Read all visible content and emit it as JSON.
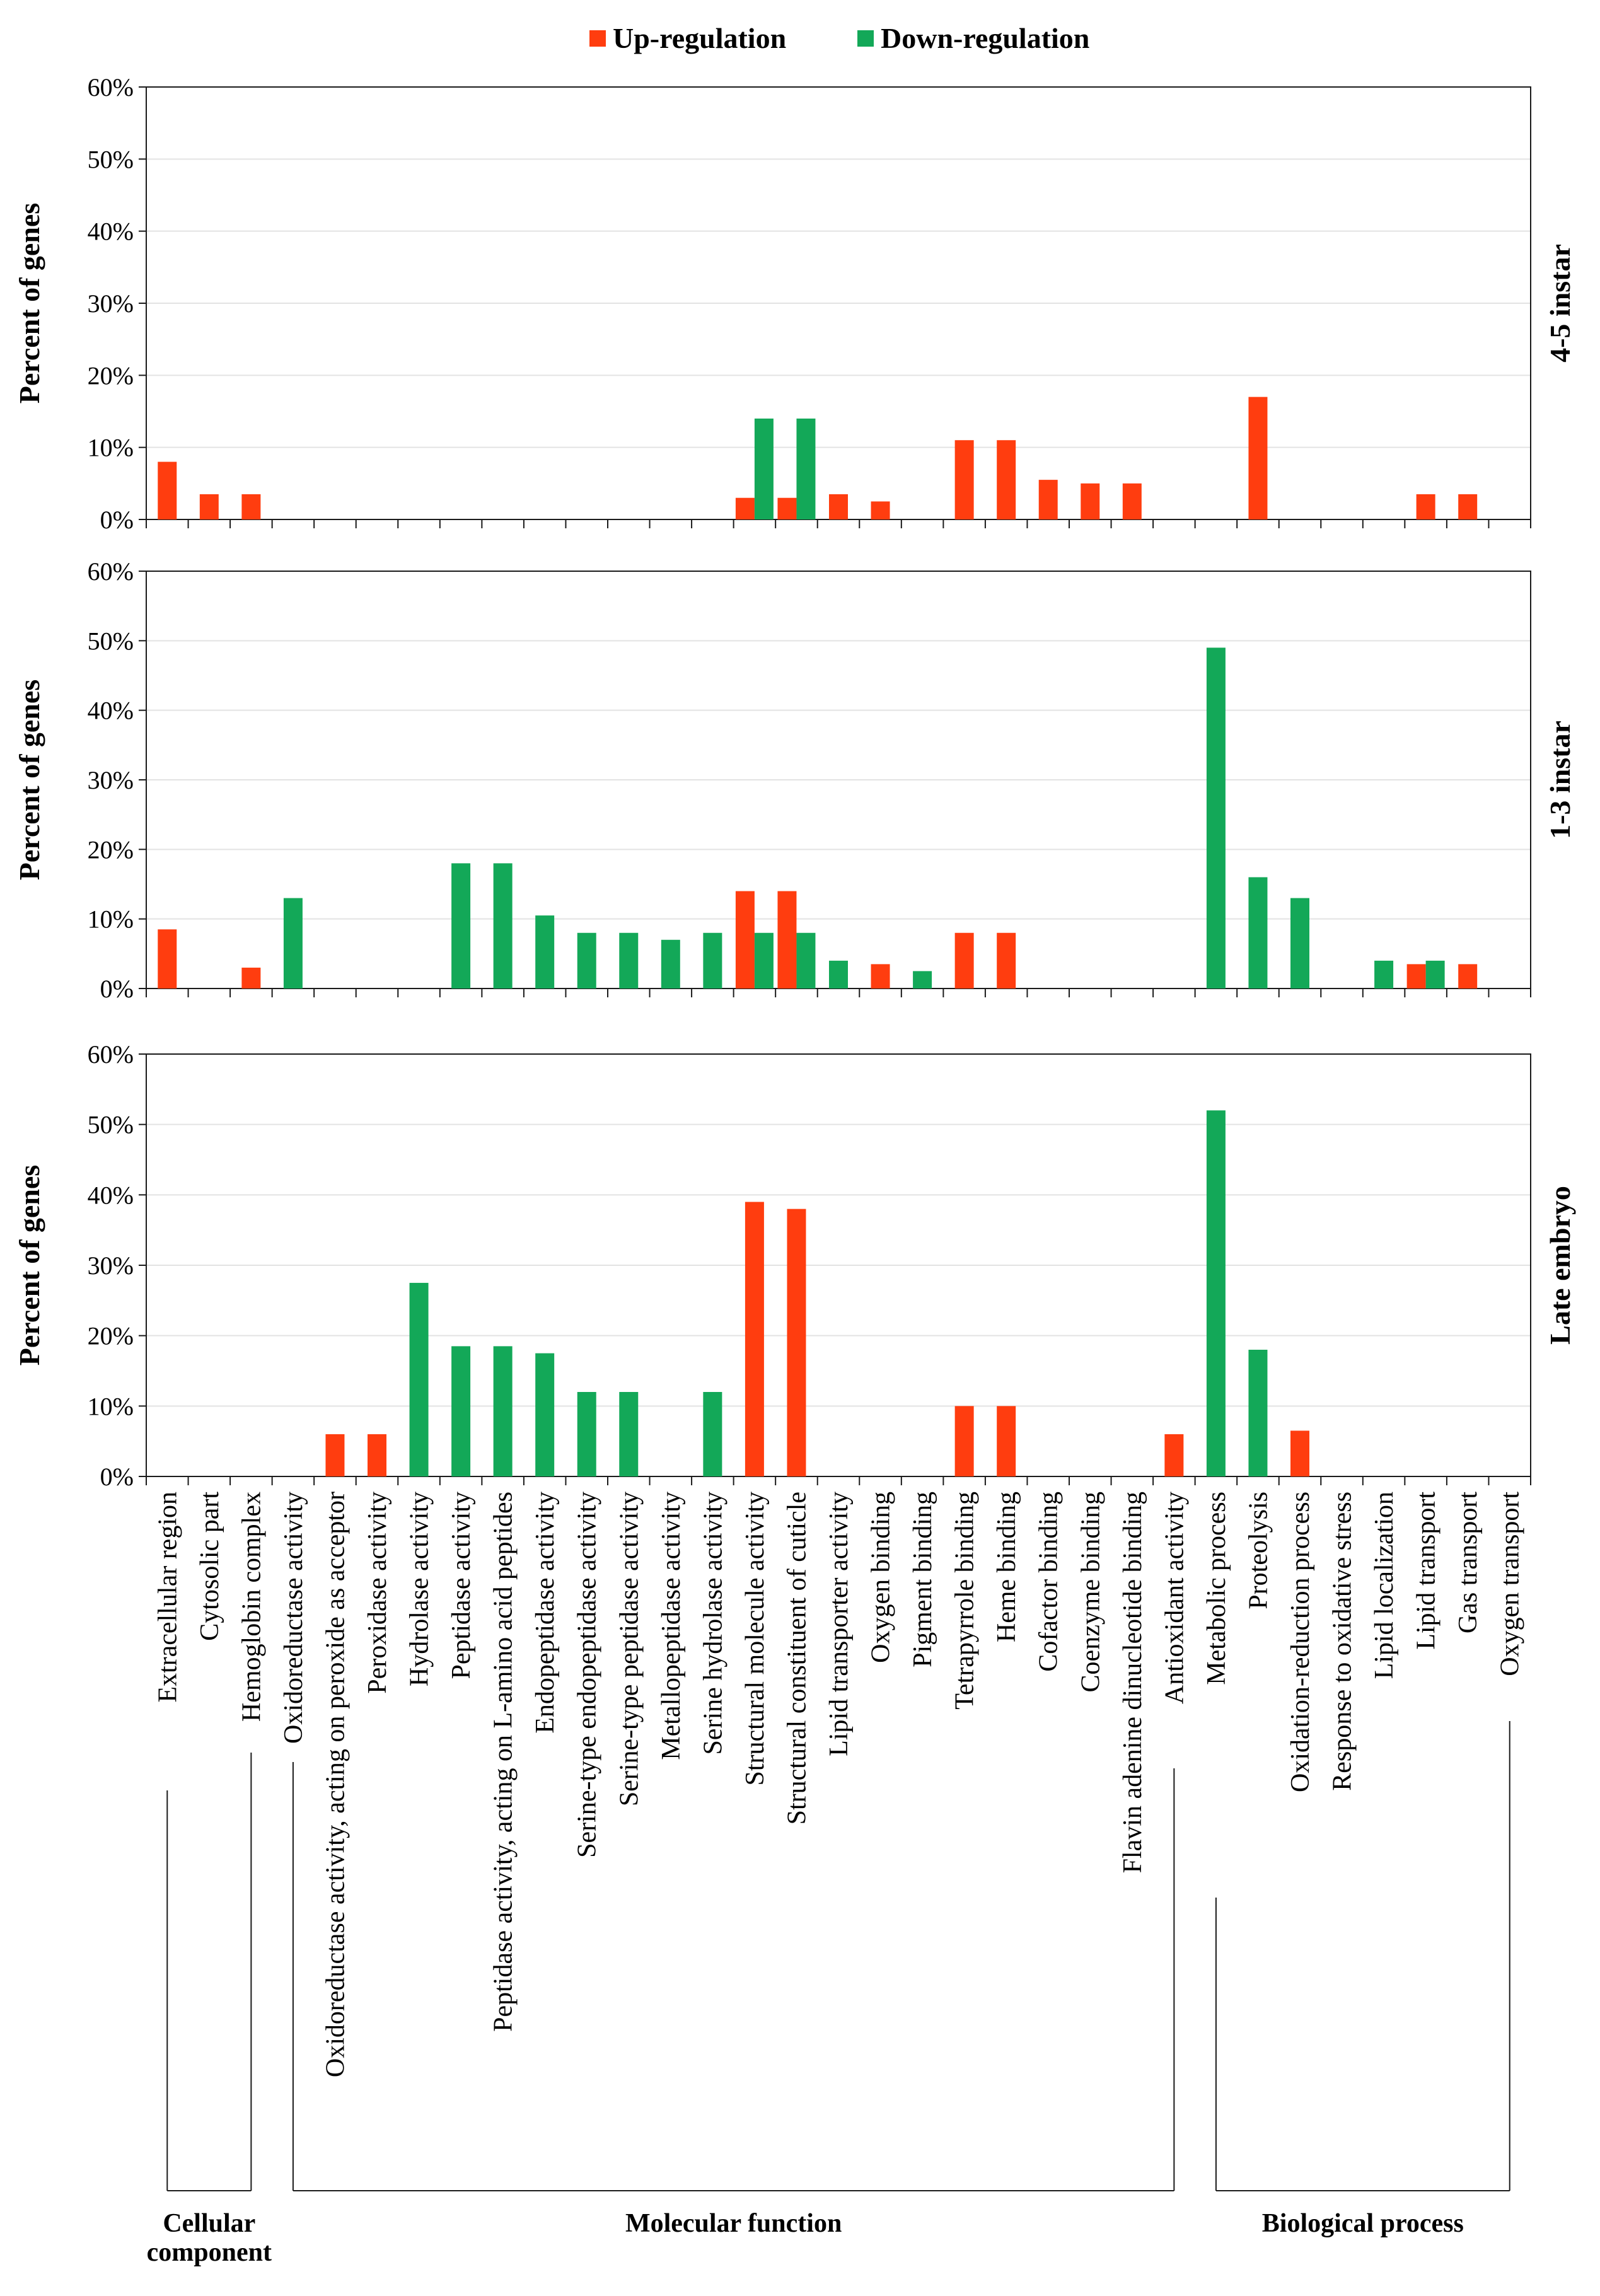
{
  "colors": {
    "up": "#FF3D0F",
    "down": "#13A858",
    "grid": "#E3E3E3",
    "frame": "#1A1A1A"
  },
  "legend": {
    "up_label": "Up-regulation",
    "down_label": "Down-regulation"
  },
  "groups": [
    {
      "label_lines": [
        "Cellular",
        "component"
      ],
      "from": 0,
      "to": 2
    },
    {
      "label_lines": [
        "Molecular function"
      ],
      "from": 3,
      "to": 24
    },
    {
      "label_lines": [
        "Biological process"
      ],
      "from": 25,
      "to": 32
    }
  ],
  "chart_data": {
    "type": "bar",
    "categories": [
      "Extracellular region",
      "Cytosolic part",
      "Hemoglobin complex",
      "Oxidoreductase activity",
      "Oxidoreductase activity, acting on peroxide as acceptor",
      "Peroxidase activity",
      "Hydrolase activity",
      "Peptidase activity",
      "Peptidase activity, acting on L-amino acid peptides",
      "Endopeptidase activity",
      "Serine-type endopeptidase activity",
      "Serine-type peptidase activity",
      "Metallopeptidase activity",
      "Serine hydrolase activity",
      "Structural molecule activity",
      "Structural constituent of cuticle",
      "Lipid transporter activity",
      "Oxygen binding",
      "Pigment binding",
      "Tetrapyrrole binding",
      "Heme binding",
      "Cofactor binding",
      "Coenzyme binding",
      "Flavin adenine dinucleotide binding",
      "Antioxidant activity",
      "Metabolic process",
      "Proteolysis",
      "Oxidation-reduction process",
      "Response to oxidative stress",
      "Lipid localization",
      "Lipid transport",
      "Gas transport",
      "Oxygen transport"
    ],
    "yticks": [
      "0%",
      "10%",
      "20%",
      "30%",
      "40%",
      "50%",
      "60%"
    ],
    "ylim": [
      0,
      60
    ],
    "ylabel": "Percent of genes",
    "panels": [
      {
        "name": "4-5 instar",
        "series": [
          {
            "name": "Up-regulation",
            "values": [
              8,
              3.5,
              3.5,
              0,
              0,
              0,
              0,
              0,
              0,
              0,
              0,
              0,
              0,
              0,
              3,
              3,
              3.5,
              2.5,
              0,
              11,
              11,
              5.5,
              5,
              5,
              0,
              0,
              17,
              0,
              0,
              0,
              3.5,
              3.5,
              0
            ]
          },
          {
            "name": "Down-regulation",
            "values": [
              0,
              0,
              0,
              0,
              0,
              0,
              0,
              0,
              0,
              0,
              0,
              0,
              0,
              0,
              14,
              14,
              0,
              0,
              0,
              0,
              0,
              0,
              0,
              0,
              0,
              0,
              0,
              0,
              0,
              0,
              0,
              0,
              0
            ]
          }
        ]
      },
      {
        "name": "1-3 instar",
        "series": [
          {
            "name": "Up-regulation",
            "values": [
              8.5,
              0,
              3,
              0,
              0,
              0,
              0,
              0,
              0,
              0,
              0,
              0,
              0,
              0,
              14,
              14,
              0,
              3.5,
              0,
              8,
              8,
              0,
              0,
              0,
              0,
              0,
              0,
              0,
              0,
              0,
              3.5,
              3.5,
              0
            ]
          },
          {
            "name": "Down-regulation",
            "values": [
              0,
              0,
              0,
              13,
              0,
              0,
              0,
              18,
              18,
              10.5,
              8,
              8,
              7,
              8,
              8,
              8,
              4,
              0,
              2.5,
              0,
              0,
              0,
              0,
              0,
              0,
              49,
              16,
              13,
              0,
              4,
              4,
              0,
              0
            ]
          }
        ]
      },
      {
        "name": "Late embryo",
        "series": [
          {
            "name": "Up-regulation",
            "values": [
              0,
              0,
              0,
              0,
              6,
              6,
              0,
              0,
              0,
              0,
              0,
              0,
              0,
              0,
              39,
              38,
              0,
              0,
              0,
              10,
              10,
              0,
              0,
              0,
              6,
              0,
              0,
              6.5,
              0,
              0,
              0,
              0,
              0
            ]
          },
          {
            "name": "Down-regulation",
            "values": [
              0,
              0,
              0,
              0,
              0,
              0,
              27.5,
              18.5,
              18.5,
              17.5,
              12,
              12,
              0,
              12,
              0,
              0,
              0,
              0,
              0,
              0,
              0,
              0,
              0,
              0,
              0,
              52,
              18,
              0,
              0,
              0,
              0,
              0,
              0
            ]
          }
        ]
      }
    ]
  }
}
